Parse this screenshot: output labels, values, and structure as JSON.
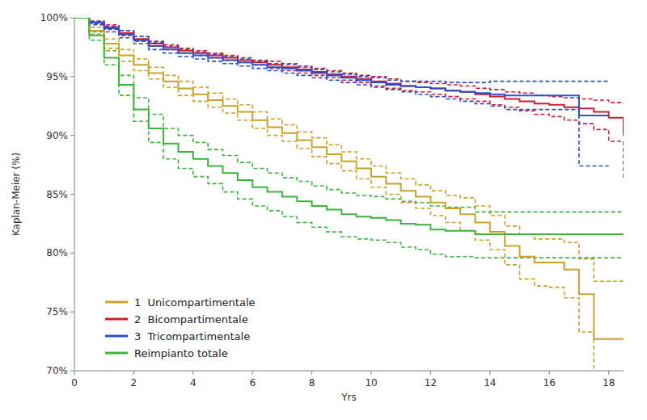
{
  "chart_data": {
    "type": "step",
    "x_label": "Yrs",
    "y_label": "Kaplan-Meier (%)",
    "xlim": [
      0,
      18.5
    ],
    "ylim": [
      70,
      100
    ],
    "xticks": [
      0,
      2,
      4,
      6,
      8,
      10,
      12,
      14,
      16,
      18
    ],
    "yticks": [
      {
        "value": 70,
        "label": "70%"
      },
      {
        "value": 75,
        "label": "75%"
      },
      {
        "value": 80,
        "label": "80%"
      },
      {
        "value": 85,
        "label": "85%"
      },
      {
        "value": 90,
        "label": "90%"
      },
      {
        "value": 95,
        "label": "95%"
      },
      {
        "value": 100,
        "label": "100%"
      }
    ],
    "grid": false,
    "legend": "lower left",
    "x": [
      0,
      0.5,
      1,
      1.5,
      2,
      2.5,
      3,
      3.5,
      4,
      4.5,
      5,
      5.5,
      6,
      6.5,
      7,
      7.5,
      8,
      8.5,
      9,
      9.5,
      10,
      10.5,
      11,
      11.5,
      12,
      12.5,
      13,
      13.5,
      14,
      14.5,
      15,
      15.5,
      16,
      16.5,
      17,
      17.5,
      18,
      18.5
    ],
    "series": [
      {
        "name": "1  Unicompartimentale",
        "color": "#c9a22a",
        "values": [
          100,
          98.9,
          97.8,
          96.8,
          96.0,
          95.3,
          94.6,
          94.0,
          93.5,
          93.0,
          92.5,
          92.0,
          91.3,
          90.7,
          90.2,
          89.6,
          89.0,
          88.4,
          87.8,
          87.2,
          86.5,
          85.9,
          85.3,
          84.8,
          84.3,
          83.8,
          83.3,
          82.6,
          81.8,
          80.6,
          79.7,
          79.2,
          79.2,
          78.6,
          76.5,
          72.7,
          72.7,
          72.7
        ],
        "lower": [
          100,
          98.6,
          97.4,
          96.3,
          95.5,
          94.8,
          94.1,
          93.4,
          92.9,
          92.4,
          91.9,
          91.3,
          90.6,
          90.0,
          89.5,
          88.9,
          88.2,
          87.6,
          87.0,
          86.3,
          85.6,
          85.0,
          84.3,
          83.8,
          83.2,
          82.6,
          81.9,
          81.1,
          80.3,
          79.0,
          77.8,
          77.2,
          77.1,
          76.2,
          73.3,
          69.5,
          null,
          null
        ],
        "upper": [
          100,
          99.2,
          98.2,
          97.3,
          96.5,
          95.8,
          95.1,
          94.6,
          94.1,
          93.6,
          93.1,
          92.6,
          92.0,
          91.4,
          90.9,
          90.3,
          89.8,
          89.2,
          88.6,
          88.0,
          87.4,
          86.8,
          86.3,
          85.8,
          85.3,
          84.9,
          84.7,
          84.0,
          83.2,
          82.3,
          81.6,
          81.2,
          81.2,
          80.9,
          79.5,
          77.6,
          77.6,
          77.6
        ]
      },
      {
        "name": "2  Bicompartimentale",
        "color": "#c8202e",
        "values": [
          100,
          99.6,
          99.2,
          98.7,
          98.2,
          97.8,
          97.5,
          97.2,
          97.0,
          96.8,
          96.6,
          96.4,
          96.2,
          96.0,
          95.8,
          95.6,
          95.4,
          95.2,
          95.0,
          94.8,
          94.6,
          94.4,
          94.2,
          94.1,
          94.0,
          93.8,
          93.7,
          93.5,
          93.3,
          93.1,
          92.9,
          92.7,
          92.6,
          92.4,
          92.3,
          92.0,
          91.5,
          90.0
        ],
        "lower": [
          100,
          99.5,
          99.0,
          98.5,
          98.0,
          97.6,
          97.3,
          97.0,
          96.8,
          96.6,
          96.4,
          96.2,
          96.0,
          95.7,
          95.5,
          95.3,
          95.1,
          94.9,
          94.7,
          94.5,
          94.2,
          94.0,
          93.8,
          93.7,
          93.5,
          93.3,
          93.1,
          92.9,
          92.6,
          92.4,
          92.1,
          91.8,
          91.6,
          91.3,
          91.0,
          90.5,
          89.5,
          86.3
        ],
        "upper": [
          100,
          99.7,
          99.4,
          98.9,
          98.4,
          98.0,
          97.7,
          97.4,
          97.2,
          97.0,
          96.8,
          96.6,
          96.4,
          96.3,
          96.1,
          95.9,
          95.7,
          95.5,
          95.3,
          95.1,
          95.0,
          94.8,
          94.6,
          94.5,
          94.4,
          94.3,
          94.2,
          94.0,
          93.9,
          93.7,
          93.6,
          93.4,
          93.3,
          93.2,
          93.1,
          93.0,
          92.8,
          92.7
        ]
      },
      {
        "name": "3  Tricompartimentale",
        "color": "#2a4fd0",
        "values": [
          100,
          99.6,
          99.1,
          98.6,
          98.1,
          97.6,
          97.3,
          97.0,
          96.8,
          96.6,
          96.4,
          96.2,
          96.0,
          95.8,
          95.7,
          95.5,
          95.3,
          95.1,
          94.9,
          94.7,
          94.5,
          94.3,
          94.2,
          94.1,
          94.0,
          93.8,
          93.7,
          93.6,
          93.5,
          93.4,
          93.4,
          93.4,
          93.4,
          93.4,
          91.7,
          91.7,
          91.7,
          null
        ],
        "lower": [
          100,
          99.4,
          98.8,
          98.3,
          97.8,
          97.3,
          97.0,
          96.7,
          96.5,
          96.3,
          96.1,
          95.9,
          95.7,
          95.5,
          95.3,
          95.1,
          94.9,
          94.7,
          94.5,
          94.3,
          94.1,
          93.9,
          93.7,
          93.5,
          93.3,
          93.1,
          92.9,
          92.7,
          92.5,
          92.2,
          92.2,
          92.2,
          92.2,
          92.2,
          87.4,
          87.4,
          87.4,
          null
        ],
        "upper": [
          100,
          99.7,
          99.3,
          98.9,
          98.4,
          97.9,
          97.6,
          97.3,
          97.1,
          96.9,
          96.7,
          96.5,
          96.3,
          96.1,
          96.0,
          95.8,
          95.6,
          95.4,
          95.2,
          95.0,
          94.9,
          94.7,
          94.6,
          94.6,
          94.6,
          94.5,
          94.5,
          94.5,
          94.6,
          94.6,
          94.6,
          94.6,
          94.6,
          94.6,
          94.6,
          94.6,
          94.6,
          null
        ]
      },
      {
        "name": "Reimpianto totale",
        "color": "#3db53d",
        "values": [
          100,
          98.5,
          96.6,
          94.3,
          92.2,
          90.6,
          89.3,
          88.6,
          88.0,
          87.4,
          86.8,
          86.2,
          85.6,
          85.2,
          84.8,
          84.4,
          84.0,
          83.7,
          83.3,
          83.1,
          83.0,
          82.8,
          82.5,
          82.4,
          82.0,
          81.9,
          81.9,
          81.6,
          81.6,
          81.6,
          81.6,
          81.6,
          81.6,
          81.6,
          81.6,
          81.6,
          81.6,
          81.6
        ],
        "lower": [
          100,
          98.1,
          96.0,
          93.4,
          91.2,
          89.4,
          88.0,
          87.2,
          86.5,
          85.9,
          85.2,
          84.6,
          84.0,
          83.6,
          83.1,
          82.6,
          82.2,
          81.8,
          81.4,
          81.2,
          81.1,
          80.9,
          80.5,
          80.3,
          79.9,
          79.7,
          79.7,
          79.6,
          79.6,
          79.6,
          79.6,
          79.6,
          79.6,
          79.6,
          79.6,
          79.6,
          79.6,
          79.6
        ],
        "upper": [
          100,
          98.8,
          97.2,
          95.1,
          93.2,
          91.8,
          90.6,
          90.0,
          89.4,
          88.8,
          88.3,
          87.7,
          87.2,
          86.8,
          86.4,
          86.1,
          85.7,
          85.4,
          85.1,
          84.9,
          84.8,
          84.6,
          84.4,
          84.3,
          84.0,
          83.9,
          83.9,
          83.5,
          83.5,
          83.5,
          83.5,
          83.5,
          83.5,
          83.5,
          83.5,
          83.5,
          83.5,
          83.5
        ]
      }
    ]
  }
}
